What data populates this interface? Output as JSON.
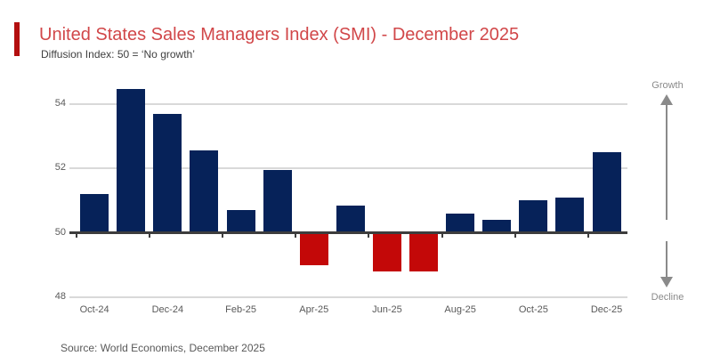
{
  "header": {
    "title": "United States Sales Managers Index (SMI) - December 2025",
    "subtitle": "Diffusion Index: 50 = ‘No growth’"
  },
  "chart_data": {
    "type": "bar",
    "title": "United States Sales Managers Index (SMI) - December 2025",
    "categories": [
      "Oct-24",
      "Nov-24",
      "Dec-24",
      "Jan-25",
      "Feb-25",
      "Mar-25",
      "Apr-25",
      "May-25",
      "Jun-25",
      "Jul-25",
      "Aug-25",
      "Sep-25",
      "Oct-25",
      "Nov-25",
      "Dec-25"
    ],
    "values": [
      51.2,
      54.45,
      53.7,
      52.55,
      50.7,
      51.95,
      49.0,
      50.85,
      48.8,
      48.8,
      50.6,
      50.4,
      51.0,
      51.1,
      52.5
    ],
    "baseline": 50,
    "baseline_meaning": "No growth",
    "x_tick_labels": [
      "Oct-24",
      "Dec-24",
      "Feb-25",
      "Apr-25",
      "Jun-25",
      "Aug-25",
      "Oct-25",
      "Dec-25"
    ],
    "y_ticks": [
      48,
      50,
      52,
      54
    ],
    "ylim": [
      47.5,
      54.6
    ],
    "grid": "horizontal",
    "colors": {
      "above_baseline": "#062259",
      "below_baseline": "#c30808",
      "axis": "#3d3d3d",
      "gridline": "#d9d9d9"
    },
    "direction_labels": {
      "up": "Growth",
      "down": "Decline"
    }
  },
  "footer": {
    "source": "Source: World Economics, December 2025"
  },
  "theme": {
    "accent_red": "#b30f0f",
    "title_red": "#d14749",
    "text_gray": "#595959",
    "arrow_gray": "#8a8a8a"
  }
}
